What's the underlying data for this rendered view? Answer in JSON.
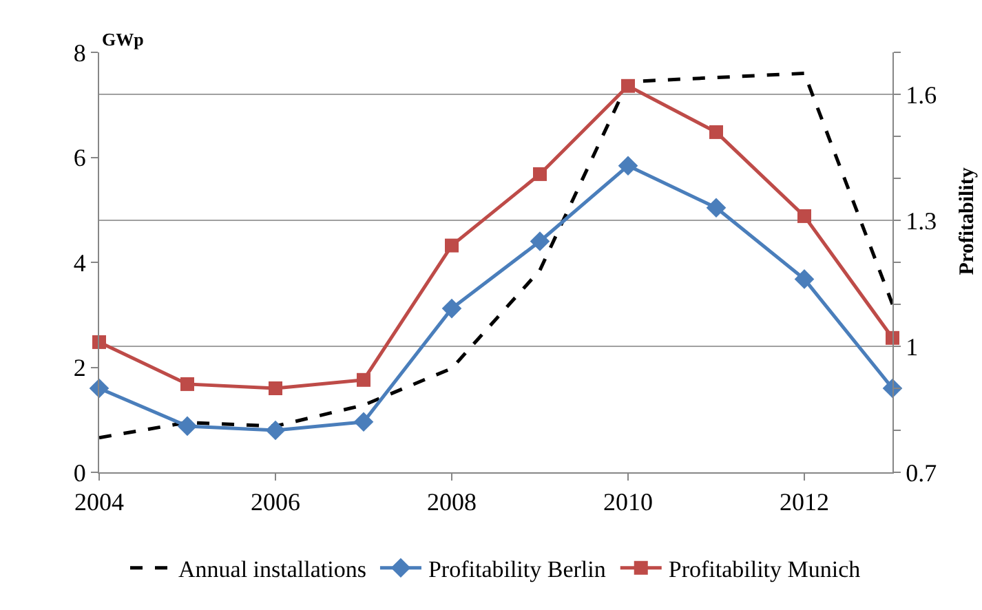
{
  "chart_data": {
    "type": "line",
    "ylabel": "GWp",
    "y2label": "Profitability",
    "x": [
      2004,
      2005,
      2006,
      2007,
      2008,
      2009,
      2010,
      2011,
      2012,
      2013
    ],
    "series": [
      {
        "name": "Annual installations",
        "color": "#000000",
        "line_style": "dashed",
        "marker": "none",
        "values": [
          0.66,
          0.95,
          0.88,
          1.28,
          1.98,
          3.85,
          7.44,
          7.52,
          7.6,
          3.2
        ]
      },
      {
        "name": "Profitability Berlin",
        "color": "#4a7ebb",
        "line_style": "solid",
        "marker": "diamond",
        "axis": "y2",
        "values": [
          0.9,
          0.81,
          0.8,
          0.82,
          1.09,
          1.25,
          1.43,
          1.33,
          1.16,
          0.9
        ]
      },
      {
        "name": "Profitability Munich",
        "color": "#be4b48",
        "line_style": "solid",
        "marker": "square",
        "axis": "y2",
        "values": [
          1.01,
          0.91,
          0.9,
          0.92,
          1.24,
          1.41,
          1.62,
          1.51,
          1.31,
          1.02
        ]
      }
    ],
    "xlim": [
      2004,
      2013
    ],
    "xticks": [
      2004,
      2006,
      2008,
      2010,
      2012
    ],
    "ylim": [
      0,
      8
    ],
    "yticks": [
      0,
      2,
      4,
      6,
      8
    ],
    "y2lim": [
      0.7,
      1.7
    ],
    "y2ticks": [
      0.7,
      {
        "value": 0.8,
        "label": null
      },
      {
        "value": 0.9,
        "label": null
      },
      {
        "value": 1.0,
        "label": "1"
      },
      {
        "value": 1.1,
        "label": null
      },
      {
        "value": 1.2,
        "label": null
      },
      1.3,
      {
        "value": 1.4,
        "label": null
      },
      {
        "value": 1.5,
        "label": null
      },
      1.6,
      {
        "value": 1.7,
        "label": null
      }
    ],
    "grid": "y2",
    "legend": "bottom"
  }
}
